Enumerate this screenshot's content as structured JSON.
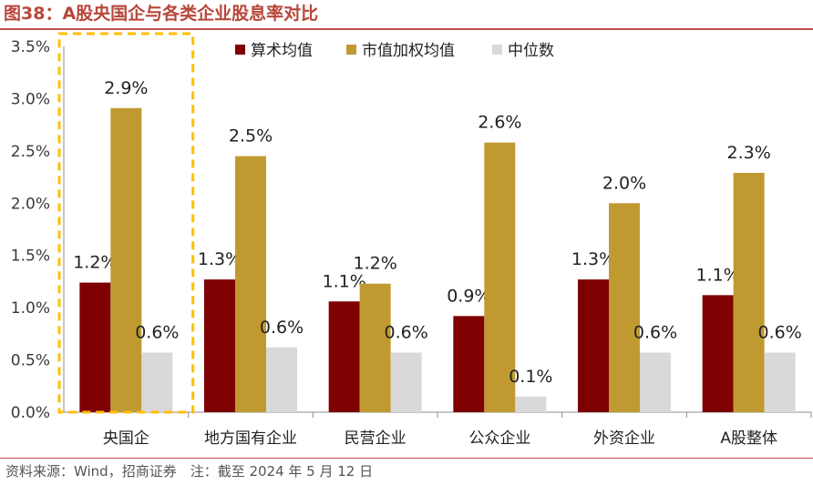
{
  "header": {
    "title": "图38：A股央国企与各类企业股息率对比"
  },
  "footer": {
    "source": "资料来源：Wind，招商证券　注：截至 2024 年 5 月 12 日"
  },
  "chart_data": {
    "type": "bar",
    "categories": [
      "央国企",
      "地方国有企业",
      "民营企业",
      "公众企业",
      "外资企业",
      "A股整体"
    ],
    "series": [
      {
        "name": "算术均值",
        "color": "#7f0000",
        "values": [
          1.24,
          1.27,
          1.06,
          0.92,
          1.27,
          1.12
        ],
        "labels": [
          "1.2%",
          "1.3%",
          "1.1%",
          "0.9%",
          "1.3%",
          "1.1%"
        ]
      },
      {
        "name": "市值加权均值",
        "color": "#c09a31",
        "values": [
          2.91,
          2.45,
          1.23,
          2.58,
          2.0,
          2.29
        ],
        "labels": [
          "2.9%",
          "2.5%",
          "1.2%",
          "2.6%",
          "2.0%",
          "2.3%"
        ]
      },
      {
        "name": "中位数",
        "color": "#d9d9d9",
        "values": [
          0.57,
          0.62,
          0.57,
          0.15,
          0.57,
          0.57
        ],
        "labels": [
          "0.6%",
          "0.6%",
          "0.6%",
          "0.1%",
          "0.6%",
          "0.6%"
        ]
      }
    ],
    "yticks": [
      "0.0%",
      "0.5%",
      "1.0%",
      "1.5%",
      "2.0%",
      "2.5%",
      "3.0%",
      "3.5%"
    ],
    "ylim": [
      0,
      3.5
    ],
    "legend_position": "top",
    "highlight": {
      "category": "央国企",
      "style": "dashed-box",
      "color": "#ffc000"
    },
    "grid": false
  }
}
